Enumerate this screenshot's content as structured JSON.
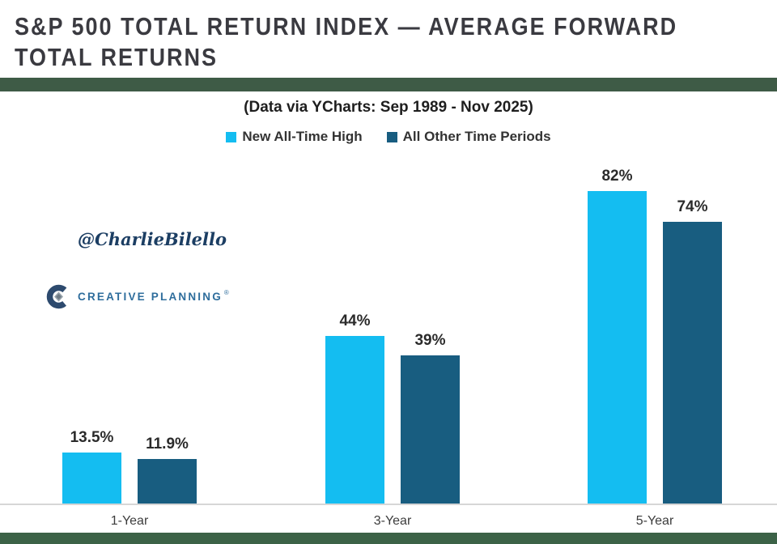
{
  "header": {
    "title_line1": "S&P 500 TOTAL RETURN INDEX — AVERAGE FORWARD",
    "title_line2": "TOTAL RETURNS"
  },
  "chart_data": {
    "type": "bar",
    "title": "S&P 500 Total Return Index — Average Forward Total Returns",
    "subtitle": "(Data via YCharts: Sep 1989 - Nov 2025)",
    "categories": [
      "1-Year",
      "3-Year",
      "5-Year"
    ],
    "series": [
      {
        "name": "New All-Time High",
        "color": "#14bdf1",
        "values": [
          13.5,
          44,
          82
        ],
        "labels": [
          "13.5%",
          "44%",
          "82%"
        ]
      },
      {
        "name": "All Other Time Periods",
        "color": "#185d80",
        "values": [
          11.9,
          39,
          74
        ],
        "labels": [
          "11.9%",
          "39%",
          "74%"
        ]
      }
    ],
    "xlabel": "",
    "ylabel": "",
    "ylim": [
      0,
      90
    ],
    "grid": false,
    "legend_position": "top-center",
    "watermark": "@CharlieBilello",
    "brand": "CREATIVE PLANNING",
    "brand_mark": "®"
  },
  "colors": {
    "accent_cyan": "#14bdf1",
    "accent_navy": "#185d80",
    "title_text": "#3a3a40",
    "subtitle_text": "#1e1e1e",
    "axis_line": "#d6d6d6",
    "top_band": "#3e5b46",
    "bottom_band": "#3c6247",
    "brand_blue": "#2e6d9c",
    "watermark_navy": "#1c3e63"
  }
}
